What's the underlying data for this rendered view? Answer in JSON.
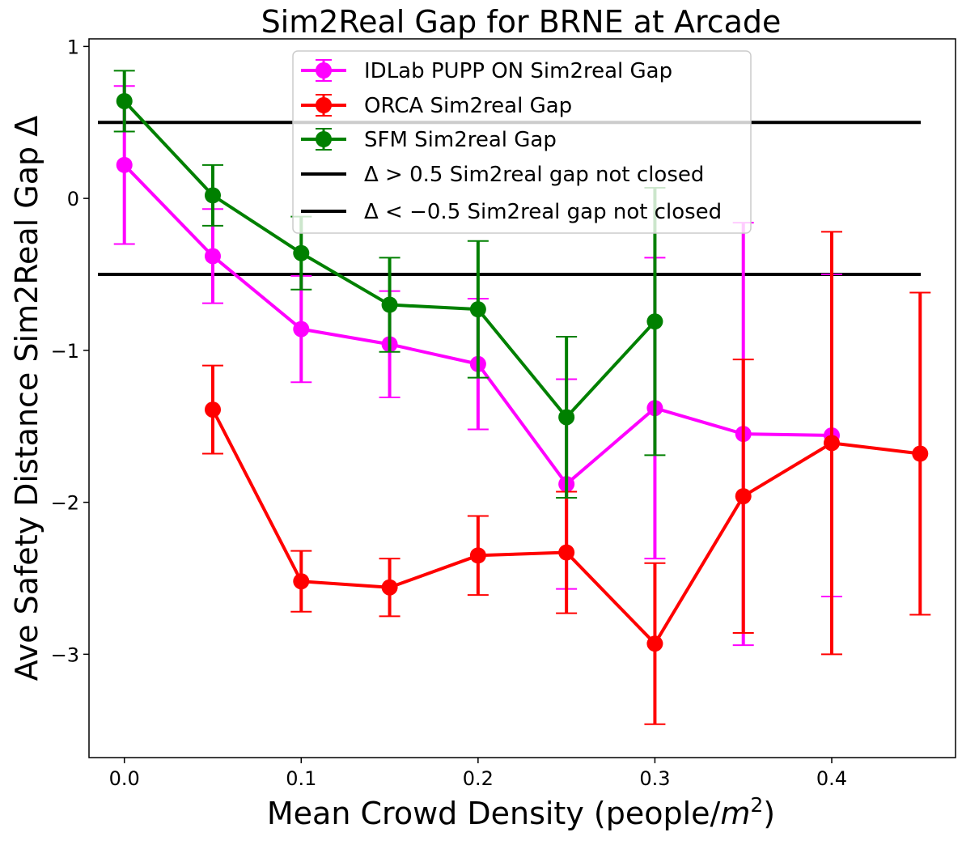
{
  "chart_data": {
    "type": "line",
    "title": "Sim2Real Gap for BRNE at Arcade",
    "xlabel": "Mean Crowd Density (people/",
    "xlabel_unit": "m",
    "xlabel_sup": "2",
    "xlabel_close": ")",
    "ylabel": "Ave Safety Distance Sim2Real Gap Δ",
    "xlim": [
      -0.02,
      0.47
    ],
    "ylim": [
      -3.68,
      1.05
    ],
    "xticks": [
      0.0,
      0.1,
      0.2,
      0.3,
      0.4
    ],
    "xtick_labels": [
      "0.0",
      "0.1",
      "0.2",
      "0.3",
      "0.4"
    ],
    "yticks": [
      1,
      0,
      -1,
      -2,
      -3
    ],
    "ytick_labels": [
      "1",
      "0",
      "−1",
      "−2",
      "−3"
    ],
    "grid": false,
    "legend_position": "top-center",
    "series": [
      {
        "name": "IDLab PUPP ON Sim2real Gap",
        "color": "#ff00ff",
        "x": [
          0.0,
          0.05,
          0.1,
          0.15,
          0.2,
          0.25,
          0.3,
          0.35,
          0.4
        ],
        "y": [
          0.22,
          -0.38,
          -0.86,
          -0.96,
          -1.09,
          -1.88,
          -1.38,
          -1.55,
          -1.56
        ],
        "err": [
          0.52,
          0.31,
          0.35,
          0.35,
          0.43,
          0.69,
          0.99,
          1.39,
          1.06
        ]
      },
      {
        "name": "ORCA Sim2real Gap",
        "color": "#ff0000",
        "x": [
          0.05,
          0.1,
          0.15,
          0.2,
          0.25,
          0.3,
          0.35,
          0.4,
          0.45
        ],
        "y": [
          -1.39,
          -2.52,
          -2.56,
          -2.35,
          -2.33,
          -2.93,
          -1.96,
          -1.61,
          -1.68
        ],
        "err": [
          0.29,
          0.2,
          0.19,
          0.26,
          0.4,
          0.53,
          0.9,
          1.39,
          1.06
        ]
      },
      {
        "name": "SFM Sim2real Gap",
        "color": "#008000",
        "x": [
          0.0,
          0.05,
          0.1,
          0.15,
          0.2,
          0.25,
          0.3
        ],
        "y": [
          0.64,
          0.02,
          -0.36,
          -0.7,
          -0.73,
          -1.44,
          -0.81
        ],
        "err": [
          0.2,
          0.2,
          0.24,
          0.31,
          0.45,
          0.53,
          0.88
        ]
      }
    ],
    "hlines": [
      {
        "label": "Δ > 0.5 Sim2real gap not closed",
        "y": 0.5,
        "color": "#000000"
      },
      {
        "label": "Δ < −0.5 Sim2real gap not closed",
        "y": -0.5,
        "color": "#000000"
      }
    ]
  }
}
